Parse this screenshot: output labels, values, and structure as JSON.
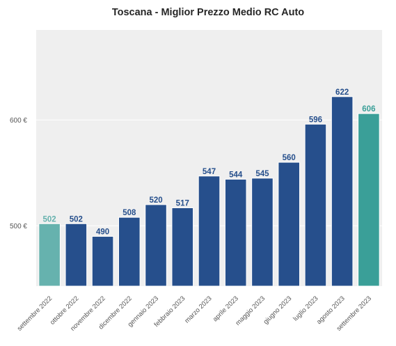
{
  "chart_data": {
    "type": "bar",
    "title": "Toscana - Miglior Prezzo Medio RC Auto",
    "xlabel": "",
    "ylabel": "",
    "categories": [
      "settembre 2022",
      "ottobre 2022",
      "novembre 2022",
      "dicembre 2022",
      "gennaio 2023",
      "febbraio 2023",
      "marzo 2023",
      "aprile 2023",
      "maggio 2023",
      "giugno 2023",
      "luglio 2023",
      "agosto 2023",
      "settembre 2023"
    ],
    "values": [
      502,
      502,
      490,
      508,
      520,
      517,
      547,
      544,
      545,
      560,
      596,
      622,
      606
    ],
    "value_labels": [
      "502",
      "502",
      "490",
      "508",
      "520",
      "517",
      "547",
      "544",
      "545",
      "560",
      "596",
      "622",
      "606"
    ],
    "ylim": [
      443,
      685
    ],
    "yticks": [
      500,
      600
    ],
    "ytick_labels": [
      "500 €",
      "600 €"
    ],
    "grid": true,
    "colors": {
      "bars": [
        "#66b2ae",
        "#264f8c",
        "#264f8c",
        "#264f8c",
        "#264f8c",
        "#264f8c",
        "#264f8c",
        "#264f8c",
        "#264f8c",
        "#264f8c",
        "#264f8c",
        "#264f8c",
        "#3a9f98"
      ],
      "labels": [
        "#66b2ae",
        "#264f8c",
        "#264f8c",
        "#264f8c",
        "#264f8c",
        "#264f8c",
        "#264f8c",
        "#264f8c",
        "#264f8c",
        "#264f8c",
        "#264f8c",
        "#264f8c",
        "#3a9f98"
      ],
      "plot_background": "#efefef",
      "grid": "#ffffff"
    }
  }
}
